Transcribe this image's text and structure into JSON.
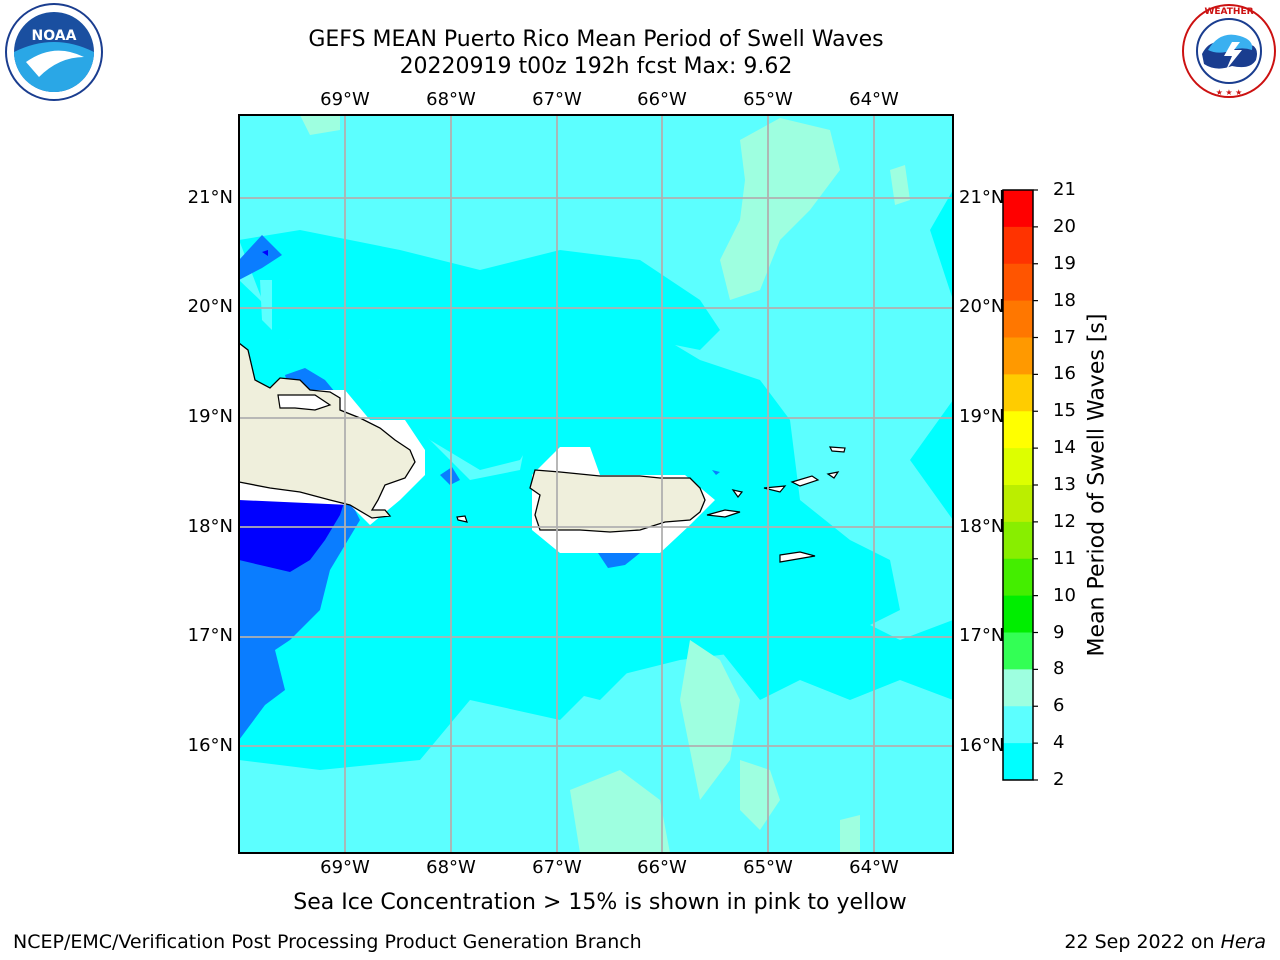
{
  "header": {
    "title_line1": "GEFS MEAN Puerto Rico Mean Period of Swell Waves",
    "title_line2": "20220919 t00z 192h fcst   Max: 9.62"
  },
  "map": {
    "lon_labels": [
      "69°W",
      "68°W",
      "67°W",
      "66°W",
      "65°W",
      "64°W"
    ],
    "lat_labels": [
      "21°N",
      "20°N",
      "19°N",
      "18°N",
      "17°N",
      "16°N"
    ],
    "colors": {
      "ocean_base": "#00ffff",
      "ocean_light": "#5cffff",
      "ocean_pale": "#9effe0",
      "mid_blue": "#0a7dff",
      "deep_blue": "#0000ff",
      "land": "#efefdc",
      "gridline": "#b0b0b0"
    }
  },
  "colorbar": {
    "title": "Mean Period of Swell Waves [s]",
    "ticks": [
      "21",
      "20",
      "19",
      "18",
      "17",
      "16",
      "15",
      "14",
      "13",
      "12",
      "11",
      "10",
      "9",
      "8",
      "6",
      "4",
      "2"
    ],
    "colors": [
      "#ff0000",
      "#ff3300",
      "#ff5500",
      "#ff7700",
      "#ff9900",
      "#ffcc00",
      "#ffff00",
      "#ddff00",
      "#bbee00",
      "#88ee00",
      "#44ee00",
      "#00ee00",
      "#33ff55",
      "#9effe0",
      "#5cffff",
      "#00ffff",
      "#0a7dff",
      "#0000ff"
    ]
  },
  "note": "Sea Ice Concentration > 15% is shown in pink to yellow",
  "footer": {
    "left": "NCEP/EMC/Verification Post Processing Product Generation Branch",
    "right_date": "22 Sep 2022 on ",
    "right_host": "Hera"
  },
  "logos": {
    "noaa": "NOAA",
    "nws": "NATIONAL WEATHER SERVICE"
  }
}
